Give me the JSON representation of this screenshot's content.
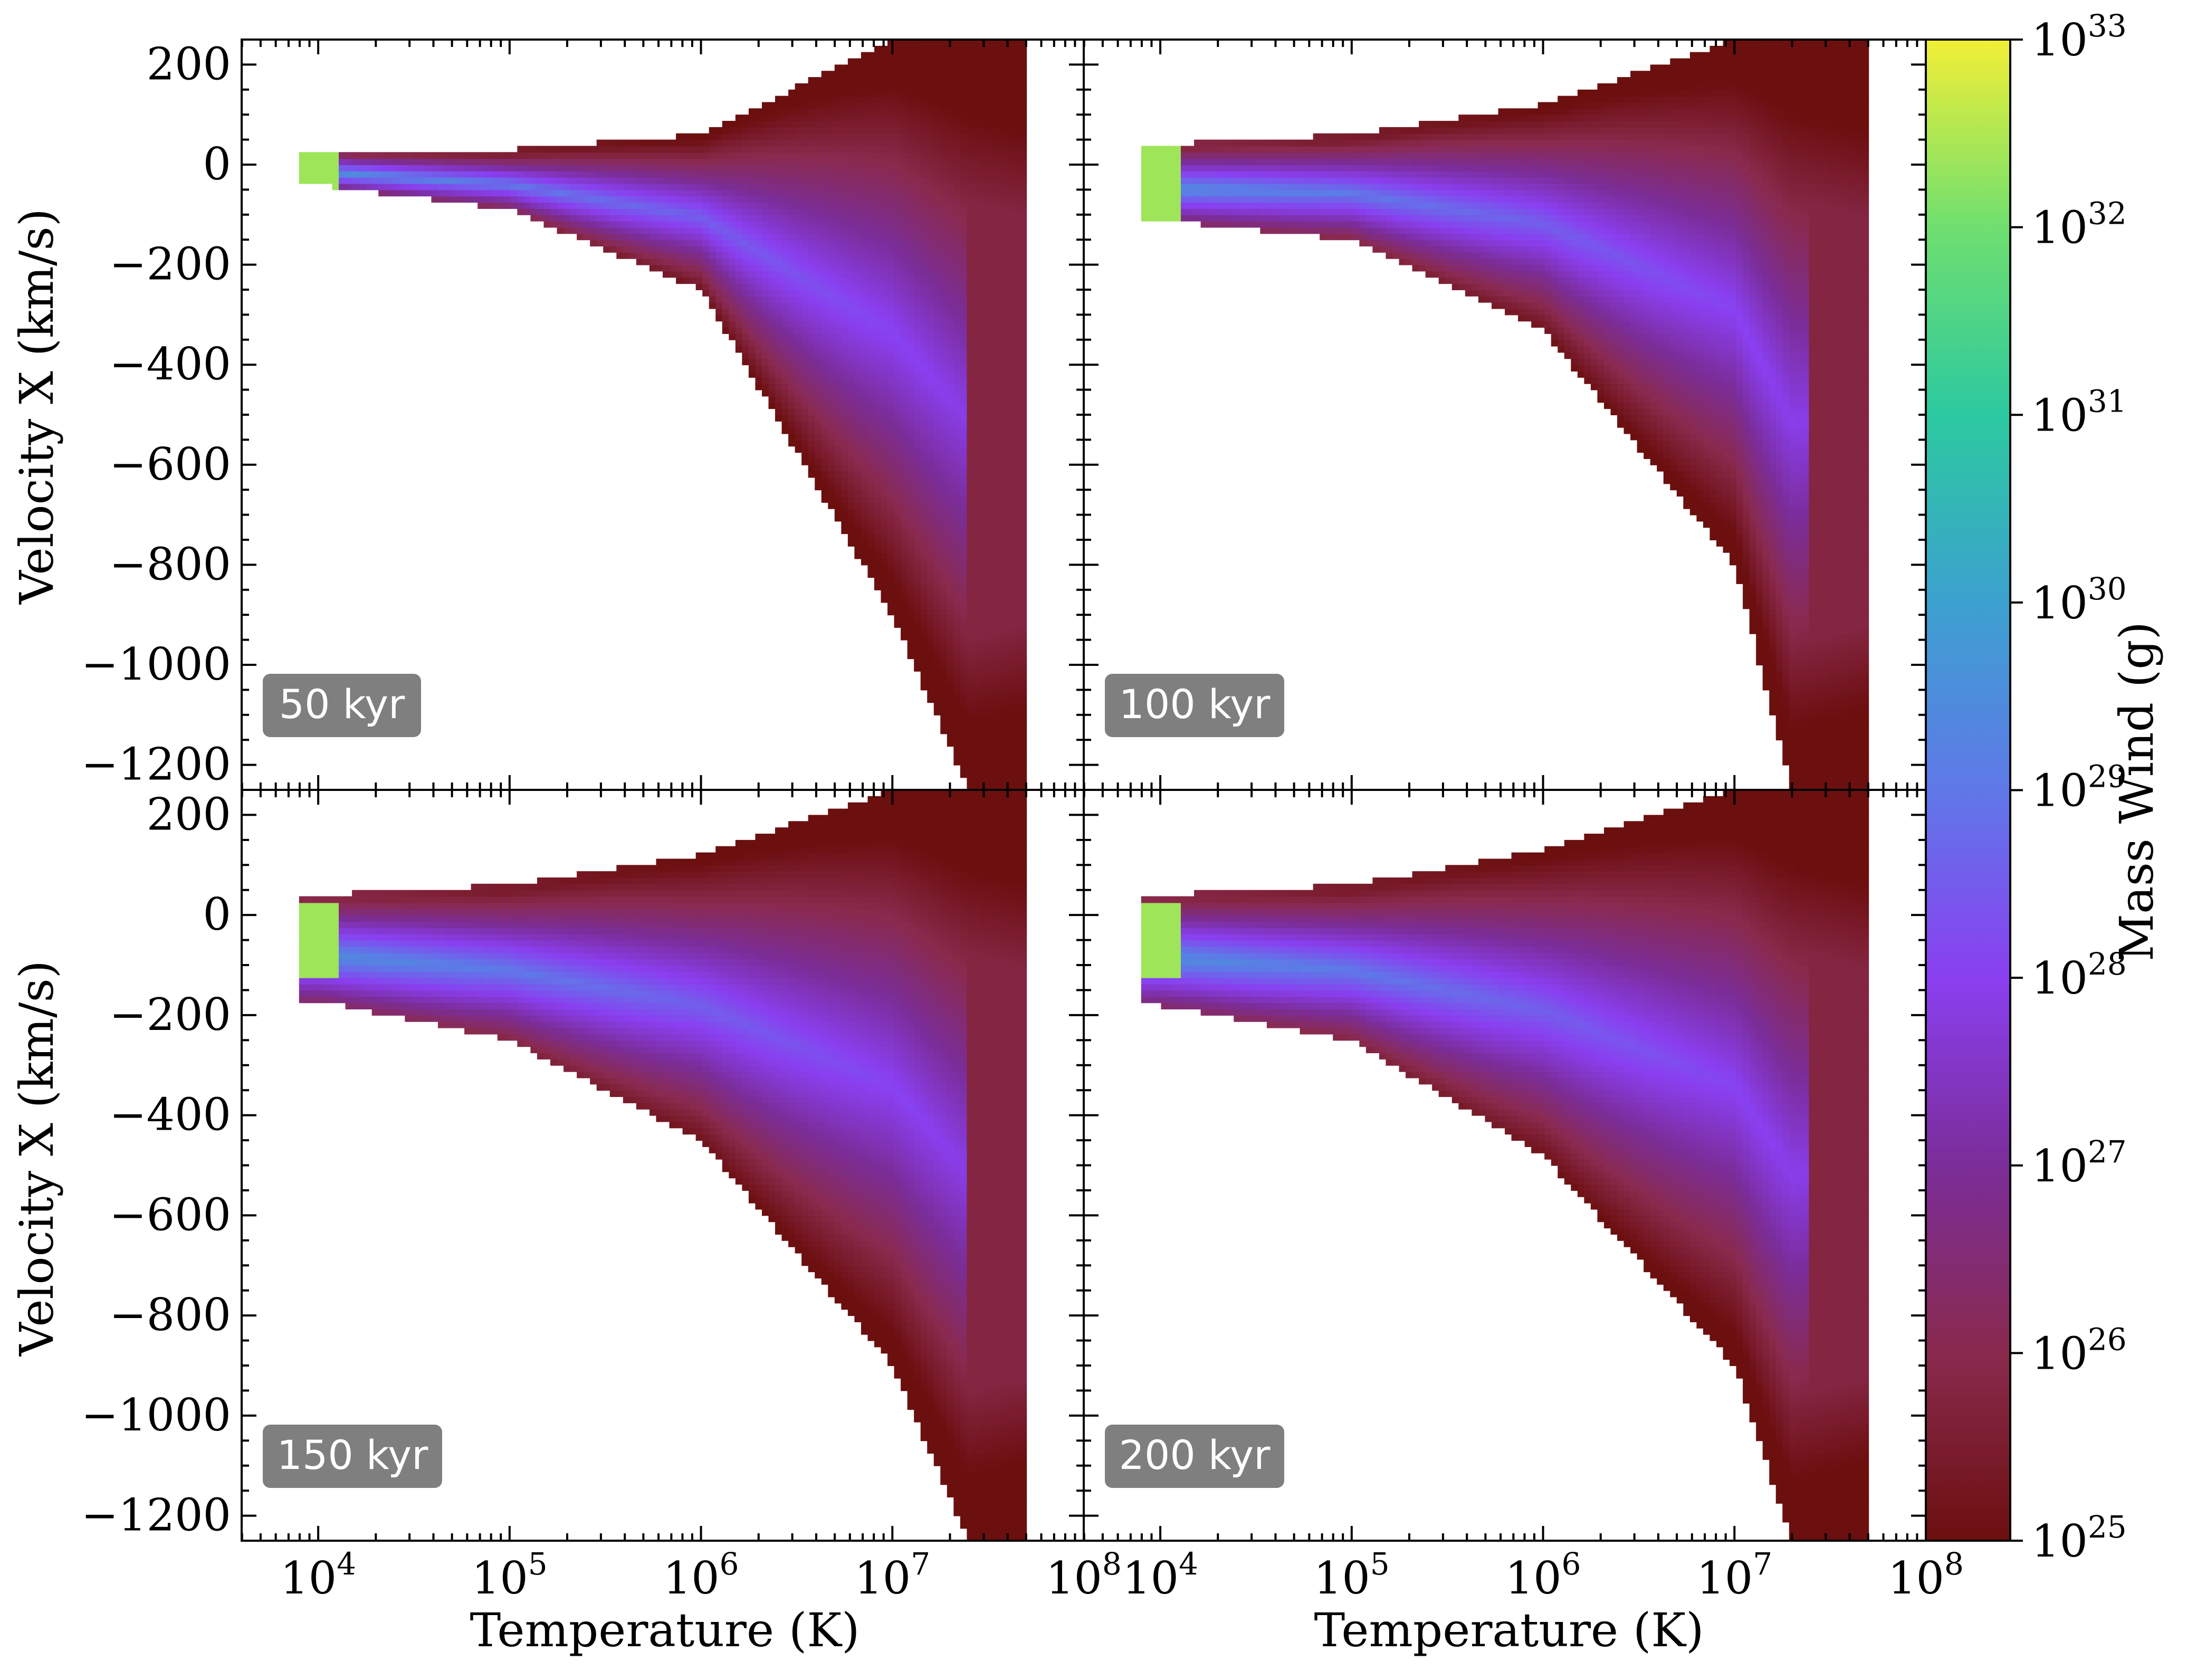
{
  "chart_data": {
    "type": "heatmap",
    "title": "",
    "xlabel": "Temperature  (K)",
    "ylabel": "Velocity X  (km/s)",
    "x_scale": "log",
    "xlim": [
      10000.0,
      100000000.0
    ],
    "x_ticks": [
      "10^4",
      "10^5",
      "10^6",
      "10^7",
      "10^8"
    ],
    "ylim": [
      -1250,
      250
    ],
    "y_ticks": [
      200,
      0,
      -200,
      -400,
      -600,
      -800,
      -1000,
      -1200
    ],
    "colorbar": {
      "label": "Mass Wind  (g)",
      "scale": "log",
      "range": [
        1e+25,
        1e+33
      ],
      "ticks": [
        "10^25",
        "10^26",
        "10^27",
        "10^28",
        "10^29",
        "10^30",
        "10^31",
        "10^32",
        "10^33"
      ],
      "colormap": [
        "#6b0f0f",
        "#8a2a4e",
        "#7b2d99",
        "#8a3ff0",
        "#5f78e8",
        "#3ca1cf",
        "#2cc9a0",
        "#6fdf6f",
        "#f2ef36"
      ]
    },
    "panels": [
      {
        "label": "50 kyr",
        "vmin_at": [
          [
            4.0,
            -40
          ],
          [
            5.0,
            -90
          ],
          [
            6.0,
            -250
          ],
          [
            7.0,
            -900
          ],
          [
            7.4,
            -1250
          ]
        ],
        "vmax_at": [
          [
            4.0,
            30
          ],
          [
            5.0,
            30
          ],
          [
            6.0,
            60
          ],
          [
            7.0,
            250
          ],
          [
            7.6,
            250
          ]
        ],
        "peak_logT": 3.95,
        "peak_v": -30
      },
      {
        "label": "100 kyr",
        "vmin_at": [
          [
            4.0,
            -110
          ],
          [
            5.0,
            -150
          ],
          [
            6.0,
            -330
          ],
          [
            7.0,
            -800
          ],
          [
            7.3,
            -1250
          ]
        ],
        "vmax_at": [
          [
            4.0,
            40
          ],
          [
            5.0,
            60
          ],
          [
            6.0,
            120
          ],
          [
            7.0,
            250
          ],
          [
            7.6,
            250
          ]
        ],
        "peak_logT": 3.95,
        "peak_v": -40
      },
      {
        "label": "150 kyr",
        "vmin_at": [
          [
            4.0,
            -170
          ],
          [
            5.0,
            -250
          ],
          [
            6.0,
            -450
          ],
          [
            7.0,
            -900
          ],
          [
            7.4,
            -1250
          ]
        ],
        "vmax_at": [
          [
            4.0,
            40
          ],
          [
            5.0,
            60
          ],
          [
            6.0,
            120
          ],
          [
            7.0,
            250
          ],
          [
            7.6,
            250
          ]
        ],
        "peak_logT": 3.95,
        "peak_v": -50
      },
      {
        "label": "200 kyr",
        "vmin_at": [
          [
            4.0,
            -180
          ],
          [
            5.0,
            -250
          ],
          [
            6.0,
            -480
          ],
          [
            7.0,
            -900
          ],
          [
            7.3,
            -1250
          ]
        ],
        "vmax_at": [
          [
            4.0,
            40
          ],
          [
            5.0,
            60
          ],
          [
            6.0,
            130
          ],
          [
            7.0,
            250
          ],
          [
            7.6,
            250
          ]
        ],
        "peak_logT": 3.95,
        "peak_v": -50
      }
    ]
  }
}
